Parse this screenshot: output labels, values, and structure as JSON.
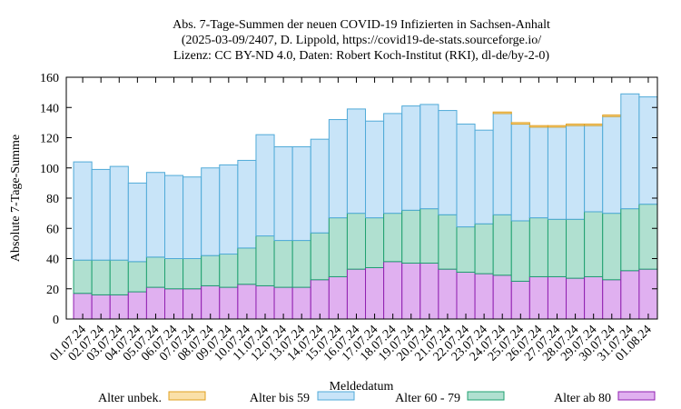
{
  "chart_data": {
    "type": "bar",
    "stacked": true,
    "title_lines": [
      "Abs. 7-Tage-Summen der neuen COVID-19 Infizierten in Sachsen-Anhalt",
      "(2025-03-09/2407, D. Lippold, https://covid19-de-stats.sourceforge.io/",
      "Lizenz: CC BY-ND 4.0, Daten: Robert Koch-Institut (RKI), dl-de/by-2-0)"
    ],
    "xlabel": "Meldedatum",
    "ylabel": "Absolute 7-Tage-Summe",
    "ylim": [
      0,
      160
    ],
    "yticks": [
      0,
      20,
      40,
      60,
      80,
      100,
      120,
      140,
      160
    ],
    "categories": [
      "01.07.24",
      "02.07.24",
      "03.07.24",
      "04.07.24",
      "05.07.24",
      "06.07.24",
      "07.07.24",
      "08.07.24",
      "09.07.24",
      "10.07.24",
      "11.07.24",
      "12.07.24",
      "13.07.24",
      "14.07.24",
      "15.07.24",
      "16.07.24",
      "17.07.24",
      "18.07.24",
      "19.07.24",
      "20.07.24",
      "21.07.24",
      "22.07.24",
      "23.07.24",
      "24.07.24",
      "25.07.24",
      "26.07.24",
      "27.07.24",
      "28.07.24",
      "29.07.24",
      "30.07.24",
      "31.07.24",
      "01.08.24"
    ],
    "series": [
      {
        "name": "Alter ab 80",
        "color": "#e0b0f0",
        "edge": "#9020b0",
        "values": [
          17,
          16,
          16,
          18,
          21,
          20,
          20,
          22,
          21,
          23,
          22,
          21,
          21,
          26,
          28,
          33,
          34,
          38,
          37,
          37,
          33,
          31,
          30,
          29,
          25,
          28,
          28,
          27,
          28,
          26,
          32,
          33
        ]
      },
      {
        "name": "Alter 60 - 79",
        "color": "#b0e0d0",
        "edge": "#20a070",
        "values": [
          22,
          23,
          23,
          20,
          20,
          20,
          20,
          20,
          22,
          24,
          33,
          31,
          31,
          31,
          39,
          37,
          33,
          32,
          35,
          36,
          36,
          30,
          33,
          40,
          40,
          39,
          38,
          39,
          43,
          44,
          41,
          43
        ]
      },
      {
        "name": "Alter bis 59",
        "color": "#c8e4f8",
        "edge": "#50aad8",
        "values": [
          65,
          60,
          62,
          52,
          56,
          55,
          54,
          58,
          59,
          58,
          67,
          62,
          62,
          62,
          65,
          69,
          64,
          66,
          69,
          69,
          69,
          68,
          62,
          67,
          64,
          60,
          61,
          62,
          57,
          64,
          76,
          71
        ]
      },
      {
        "name": "Alter unbek.",
        "color": "#fae0a8",
        "edge": "#e0a020",
        "values": [
          0,
          0,
          0,
          0,
          0,
          0,
          0,
          0,
          0,
          0,
          0,
          0,
          0,
          0,
          0,
          0,
          0,
          0,
          0,
          0,
          0,
          0,
          0,
          1,
          1,
          1,
          1,
          1,
          1,
          1,
          0,
          0
        ]
      }
    ],
    "legend": [
      {
        "label": "Alter unbek.",
        "series": 3
      },
      {
        "label": "Alter bis 59",
        "series": 2
      },
      {
        "label": "Alter 60 - 79",
        "series": 1
      },
      {
        "label": "Alter ab 80",
        "series": 0
      }
    ]
  }
}
